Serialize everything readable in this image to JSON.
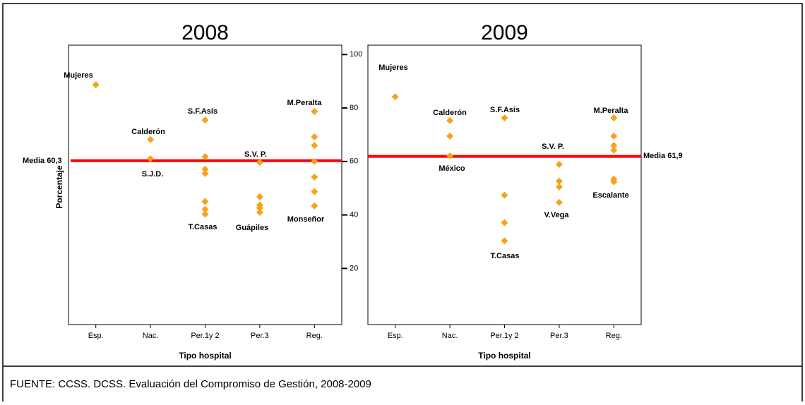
{
  "chart_data": [
    {
      "type": "scatter",
      "title": "2008",
      "xlabel": "Tipo hospital",
      "ylabel": "Porcentaje",
      "categories": [
        "Esp.",
        "Nac.",
        "Per.1y 2",
        "Per.3",
        "Reg."
      ],
      "x": [
        "Esp.",
        "Nac.",
        "Nac.",
        "Per.1y 2",
        "Per.1y 2",
        "Per.1y 2",
        "Per.1y 2",
        "Per.1y 2",
        "Per.1y 2",
        "Per.1y 2",
        "Per.3",
        "Per.3",
        "Per.3",
        "Per.3",
        "Per.3",
        "Reg.",
        "Reg.",
        "Reg.",
        "Reg.",
        "Reg.",
        "Reg.",
        "Reg."
      ],
      "values": [
        88.7,
        68.2,
        61,
        75.5,
        61.8,
        57.1,
        55.5,
        45,
        42.1,
        40.3,
        59.7,
        46.8,
        43.7,
        42.6,
        41,
        78.7,
        69.2,
        66,
        60,
        54.2,
        48.7,
        43.4
      ],
      "color": "#f9a11b",
      "mean": 60.3,
      "mean_label": "Media 60,3",
      "mean_color": "#ff0000",
      "annotations": [
        "Mujeres",
        "Calderón",
        "S.J.D.",
        "S.F.Asís",
        "T.Casas",
        "S.V. P.",
        "Guápiles",
        "M.Peralta",
        "Monseñor"
      ],
      "ylim": [
        -1,
        103.5
      ],
      "yticks": [
        20,
        40,
        60,
        80,
        100
      ]
    },
    {
      "type": "scatter",
      "title": "2009",
      "xlabel": "Tipo hospital",
      "categories": [
        "Esp.",
        "Nac.",
        "Per.1y 2",
        "Per.3",
        "Reg."
      ],
      "x": [
        "Esp.",
        "Nac.",
        "Nac.",
        "Nac.",
        "Per.1y 2",
        "Per.1y 2",
        "Per.1y 2",
        "Per.1y 2",
        "Per.3",
        "Per.3",
        "Per.3",
        "Per.3",
        "Reg.",
        "Reg.",
        "Reg.",
        "Reg.",
        "Reg.",
        "Reg."
      ],
      "values": [
        84.2,
        75.3,
        69.5,
        62.1,
        76.3,
        47.4,
        37.1,
        30.3,
        58.9,
        52.6,
        50.5,
        44.7,
        76.3,
        69.5,
        66,
        64.2,
        53.4,
        52.4
      ],
      "color": "#f9a11b",
      "mean": 61.9,
      "mean_label": "Media 61,9",
      "mean_color": "#ff0000",
      "annotations": [
        "Mujeres",
        "Calderón",
        "México",
        "S.F.Asís",
        "T.Casas",
        "S.V. P.",
        "V.Vega",
        "M.Peralta",
        "Escalante"
      ],
      "ylim": [
        -1,
        103.5
      ]
    }
  ],
  "source": "FUENTE: CCSS. DCSS. Evaluación del Compromiso de Gestión, 2008-2009"
}
